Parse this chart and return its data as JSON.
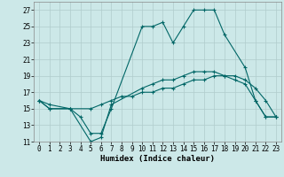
{
  "title": "",
  "xlabel": "Humidex (Indice chaleur)",
  "xlim": [
    -0.5,
    23.5
  ],
  "ylim": [
    11,
    28
  ],
  "yticks": [
    11,
    13,
    15,
    17,
    19,
    21,
    23,
    25,
    27
  ],
  "xticks": [
    0,
    1,
    2,
    3,
    4,
    5,
    6,
    7,
    8,
    9,
    10,
    11,
    12,
    13,
    14,
    15,
    16,
    17,
    18,
    19,
    20,
    21,
    22,
    23
  ],
  "bg_color": "#cce8e8",
  "grid_color": "#b0cccc",
  "line_color": "#006666",
  "line1_x": [
    0,
    1,
    3,
    4,
    5,
    6,
    7,
    10,
    11,
    12,
    13,
    14,
    15,
    16,
    17,
    18,
    20,
    21,
    22,
    23
  ],
  "line1_y": [
    16,
    15,
    15,
    14,
    12,
    12,
    15,
    25,
    25,
    25.5,
    23,
    25,
    27,
    27,
    27,
    24,
    20,
    16,
    14,
    14
  ],
  "line2_x": [
    0,
    1,
    3,
    5,
    6,
    7,
    10,
    11,
    12,
    13,
    14,
    15,
    16,
    17,
    18,
    19,
    20,
    21,
    22,
    23
  ],
  "line2_y": [
    16,
    15,
    15,
    11,
    11.5,
    15.5,
    17.5,
    18,
    18.5,
    18.5,
    19,
    19.5,
    19.5,
    19.5,
    19,
    18.5,
    18,
    16,
    14,
    14
  ],
  "line3_x": [
    0,
    1,
    3,
    5,
    6,
    7,
    8,
    9,
    10,
    11,
    12,
    13,
    14,
    15,
    16,
    17,
    18,
    19,
    20,
    21,
    22,
    23
  ],
  "line3_y": [
    16,
    15.5,
    15,
    15,
    15.5,
    16,
    16.5,
    16.5,
    17,
    17,
    17.5,
    17.5,
    18,
    18.5,
    18.5,
    19,
    19,
    19,
    18.5,
    17.5,
    16,
    14
  ],
  "marker": "+",
  "markersize": 3.5,
  "linewidth": 0.8,
  "label_fontsize": 6.5,
  "tick_fontsize": 5.5
}
